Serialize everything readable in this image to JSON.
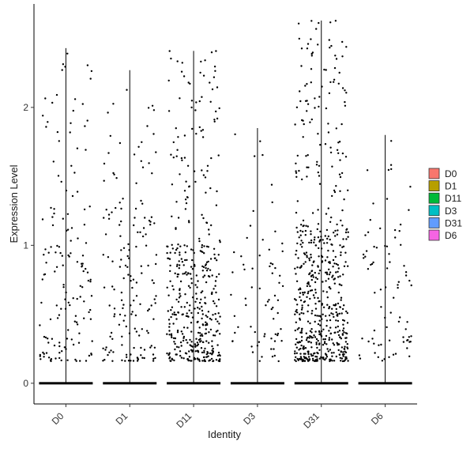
{
  "chart_data": {
    "type": "scatter",
    "subtype": "violin-jitter",
    "title": "",
    "xlabel": "Identity",
    "ylabel": "Expression Level",
    "categories": [
      "D0",
      "D1",
      "D11",
      "D3",
      "D31",
      "D6"
    ],
    "ylim": [
      -0.15,
      2.75
    ],
    "yticks": [
      0,
      1,
      2
    ],
    "grid": false,
    "legend": {
      "position": "right",
      "entries": [
        {
          "label": "D0",
          "color": "#F8766D"
        },
        {
          "label": "D1",
          "color": "#B79F00"
        },
        {
          "label": "D11",
          "color": "#00BA38"
        },
        {
          "label": "D3",
          "color": "#00BFC4"
        },
        {
          "label": "D31",
          "color": "#619CFF"
        },
        {
          "label": "D6",
          "color": "#F564E3"
        }
      ]
    },
    "series": [
      {
        "category": "D0",
        "max": 2.43,
        "n_zero": 900,
        "n_nonzero": 150,
        "nonzero_center": 0.85
      },
      {
        "category": "D1",
        "max": 2.27,
        "n_zero": 900,
        "n_nonzero": 160,
        "nonzero_center": 0.8
      },
      {
        "category": "D11",
        "max": 2.41,
        "n_zero": 800,
        "n_nonzero": 430,
        "nonzero_center": 0.5
      },
      {
        "category": "D3",
        "max": 1.85,
        "n_zero": 900,
        "n_nonzero": 70,
        "nonzero_center": 0.55
      },
      {
        "category": "D31",
        "max": 2.63,
        "n_zero": 700,
        "n_nonzero": 600,
        "nonzero_center": 0.65
      },
      {
        "category": "D6",
        "max": 1.8,
        "n_zero": 900,
        "n_nonzero": 80,
        "nonzero_center": 0.6
      }
    ]
  }
}
